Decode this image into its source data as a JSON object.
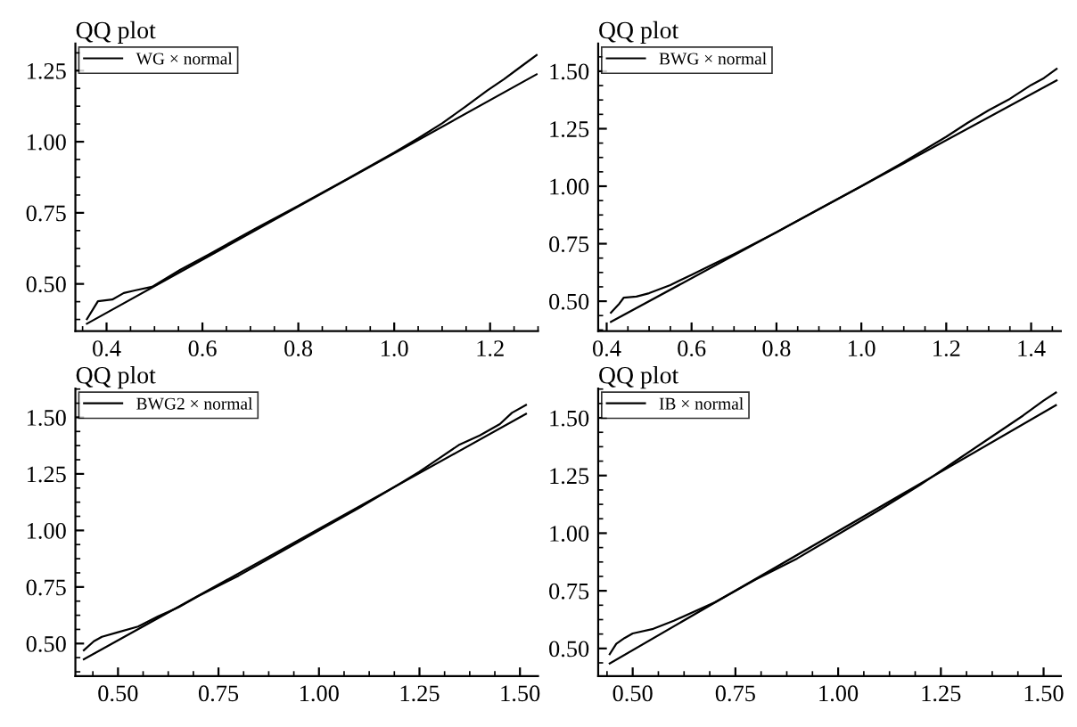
{
  "chart_data": [
    {
      "type": "line",
      "title": "QQ plot",
      "legend": "top left",
      "marker": "none",
      "line_style": "solid",
      "grid": false,
      "xlim": [
        0.335,
        1.3
      ],
      "ylim": [
        0.334,
        1.345
      ],
      "xticks": [
        0.4,
        0.6,
        0.8,
        {
          "value": 1.0,
          "label": "1.0"
        },
        1.2
      ],
      "yticks": [
        {
          "value": 0.5,
          "label": "0.50"
        },
        {
          "value": 0.75,
          "label": "0.75"
        },
        {
          "value": 1.0,
          "label": "1.00"
        },
        {
          "value": 1.25,
          "label": "1.25"
        }
      ],
      "series": [
        {
          "name": "WG × normal",
          "color": "#000000",
          "x": [
            0.359,
            0.382,
            0.412,
            0.436,
            0.459,
            0.495,
            0.554,
            0.613,
            0.7,
            0.8,
            0.9,
            1.0,
            1.05,
            1.1,
            1.15,
            1.194,
            1.229,
            1.265,
            1.297
          ],
          "values": [
            0.376,
            0.439,
            0.445,
            0.468,
            0.477,
            0.49,
            0.55,
            0.603,
            0.685,
            0.775,
            0.867,
            0.962,
            1.012,
            1.065,
            1.125,
            1.18,
            1.22,
            1.265,
            1.305
          ]
        },
        {
          "type": "line",
          "color": "#000000",
          "x": [
            0.359,
            1.297
          ],
          "values": [
            0.36,
            1.237
          ]
        }
      ]
    },
    {
      "type": "line",
      "title": "QQ plot",
      "legend": "top left",
      "marker": "none",
      "line_style": "solid",
      "grid": false,
      "xlim": [
        0.38,
        1.47
      ],
      "ylim": [
        0.37,
        1.62
      ],
      "xticks": [
        0.4,
        0.6,
        0.8,
        {
          "value": 1.0,
          "label": "1.0"
        },
        1.2,
        1.4
      ],
      "yticks": [
        {
          "value": 0.5,
          "label": "0.50"
        },
        {
          "value": 0.75,
          "label": "0.75"
        },
        {
          "value": 1.0,
          "label": "1.00"
        },
        {
          "value": 1.25,
          "label": "1.25"
        },
        {
          "value": 1.5,
          "label": "1.50"
        }
      ],
      "series": [
        {
          "name": "BWG × normal",
          "color": "#000000",
          "x": [
            0.41,
            0.43,
            0.44,
            0.47,
            0.5,
            0.55,
            0.6,
            0.65,
            0.7,
            0.8,
            0.9,
            1.0,
            1.1,
            1.2,
            1.25,
            1.3,
            1.35,
            1.4,
            1.43,
            1.46
          ],
          "values": [
            0.45,
            0.49,
            0.515,
            0.52,
            0.535,
            0.57,
            0.615,
            0.66,
            0.705,
            0.8,
            0.9,
            1.0,
            1.105,
            1.215,
            1.275,
            1.33,
            1.38,
            1.44,
            1.47,
            1.51
          ]
        },
        {
          "type": "line",
          "color": "#000000",
          "x": [
            0.41,
            1.46
          ],
          "values": [
            0.41,
            1.46
          ]
        }
      ]
    },
    {
      "type": "line",
      "title": "QQ plot",
      "legend": "top left",
      "marker": "none",
      "line_style": "solid",
      "grid": false,
      "xlim": [
        0.394,
        1.545
      ],
      "ylim": [
        0.356,
        1.627
      ],
      "xticks": [
        {
          "value": 0.5,
          "label": "0.50"
        },
        {
          "value": 0.75,
          "label": "0.75"
        },
        {
          "value": 1.0,
          "label": "1.00"
        },
        {
          "value": 1.25,
          "label": "1.25"
        },
        {
          "value": 1.5,
          "label": "1.50"
        }
      ],
      "yticks": [
        {
          "value": 0.5,
          "label": "0.50"
        },
        {
          "value": 0.75,
          "label": "0.75"
        },
        {
          "value": 1.0,
          "label": "1.00"
        },
        {
          "value": 1.25,
          "label": "1.25"
        },
        {
          "value": 1.5,
          "label": "1.50"
        }
      ],
      "series": [
        {
          "name": "BWG2 × normal",
          "color": "#000000",
          "x": [
            0.415,
            0.44,
            0.46,
            0.5,
            0.55,
            0.6,
            0.65,
            0.7,
            0.8,
            0.9,
            1.0,
            1.1,
            1.2,
            1.25,
            1.3,
            1.35,
            1.4,
            1.45,
            1.48,
            1.515
          ],
          "values": [
            0.47,
            0.51,
            0.53,
            0.55,
            0.575,
            0.62,
            0.66,
            0.71,
            0.8,
            0.9,
            1.0,
            1.1,
            1.205,
            1.26,
            1.32,
            1.38,
            1.42,
            1.47,
            1.52,
            1.555
          ]
        },
        {
          "type": "line",
          "color": "#000000",
          "x": [
            0.415,
            1.515
          ],
          "values": [
            0.43,
            1.515
          ]
        }
      ]
    },
    {
      "type": "line",
      "title": "QQ plot",
      "legend": "top left",
      "marker": "none",
      "line_style": "solid",
      "grid": false,
      "xlim": [
        0.416,
        1.542
      ],
      "ylim": [
        0.38,
        1.627
      ],
      "xticks": [
        {
          "value": 0.5,
          "label": "0.50"
        },
        {
          "value": 0.75,
          "label": "0.75"
        },
        {
          "value": 1.0,
          "label": "1.00"
        },
        {
          "value": 1.25,
          "label": "1.25"
        },
        {
          "value": 1.5,
          "label": "1.50"
        }
      ],
      "yticks": [
        {
          "value": 0.5,
          "label": "0.50"
        },
        {
          "value": 0.75,
          "label": "0.75"
        },
        {
          "value": 1.0,
          "label": "1.00"
        },
        {
          "value": 1.25,
          "label": "1.25"
        },
        {
          "value": 1.5,
          "label": "1.50"
        }
      ],
      "series": [
        {
          "name": "IB × normal",
          "color": "#000000",
          "x": [
            0.444,
            0.46,
            0.48,
            0.5,
            0.55,
            0.6,
            0.7,
            0.8,
            0.9,
            1.0,
            1.1,
            1.2,
            1.3,
            1.35,
            1.4,
            1.45,
            1.5,
            1.53
          ],
          "values": [
            0.475,
            0.52,
            0.545,
            0.565,
            0.585,
            0.62,
            0.7,
            0.8,
            0.89,
            0.995,
            1.1,
            1.21,
            1.33,
            1.39,
            1.45,
            1.51,
            1.575,
            1.61
          ]
        },
        {
          "type": "line",
          "color": "#000000",
          "x": [
            0.444,
            1.53
          ],
          "values": [
            0.435,
            1.555
          ]
        }
      ]
    }
  ]
}
